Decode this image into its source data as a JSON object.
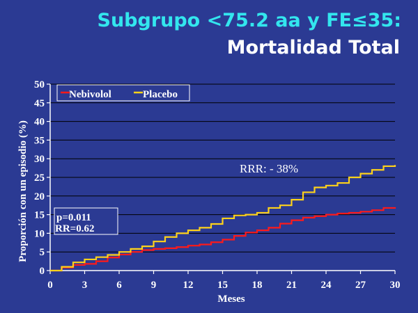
{
  "slide": {
    "title_line1": "Subgrupo <75.2 aa y FE≤35:",
    "title_line2": "Mortalidad Total"
  },
  "chart_data": {
    "type": "line",
    "xlabel": "Meses",
    "ylabel": "Proporción con un episodio (%)",
    "xlim": [
      0,
      30
    ],
    "ylim": [
      0,
      50
    ],
    "xticks": [
      0,
      3,
      6,
      9,
      12,
      15,
      18,
      21,
      24,
      27,
      30
    ],
    "yticks": [
      0,
      5,
      10,
      15,
      20,
      25,
      30,
      35,
      40,
      45,
      50
    ],
    "grid": "horizontal",
    "legend_position": "top-left",
    "series": [
      {
        "name": "Nebivolol",
        "color": "#ff1a1a",
        "x": [
          0,
          1,
          2,
          3,
          4,
          5,
          6,
          7,
          8,
          9,
          10,
          11,
          12,
          13,
          14,
          15,
          16,
          17,
          18,
          19,
          20,
          21,
          22,
          23,
          24,
          25,
          26,
          27,
          28,
          29,
          30
        ],
        "y": [
          0,
          0.8,
          1.5,
          1.8,
          2.5,
          3.5,
          4.3,
          5.0,
          5.5,
          5.8,
          6.0,
          6.3,
          6.7,
          7.0,
          7.6,
          8.3,
          9.3,
          10.2,
          10.8,
          11.5,
          12.6,
          13.5,
          14.2,
          14.6,
          15.0,
          15.3,
          15.5,
          15.8,
          16.2,
          16.8,
          17.0
        ]
      },
      {
        "name": "Placebo",
        "color": "#ffd21a",
        "x": [
          0,
          1,
          2,
          3,
          4,
          5,
          6,
          7,
          8,
          9,
          10,
          11,
          12,
          13,
          14,
          15,
          16,
          17,
          18,
          19,
          20,
          21,
          22,
          23,
          24,
          25,
          26,
          27,
          28,
          29,
          30
        ],
        "y": [
          0,
          1.0,
          2.2,
          3.0,
          3.6,
          4.2,
          5.0,
          5.8,
          6.5,
          7.8,
          9.0,
          10.0,
          10.8,
          11.5,
          12.5,
          14.0,
          14.8,
          15.0,
          15.5,
          16.8,
          17.5,
          19.0,
          21.0,
          22.3,
          22.8,
          23.5,
          25.0,
          26.0,
          27.0,
          28.0,
          28.3
        ]
      }
    ],
    "annotations": {
      "rrr": "RRR: - 38%",
      "p_value": "p=0.011",
      "rr": "RR=0.62"
    }
  }
}
